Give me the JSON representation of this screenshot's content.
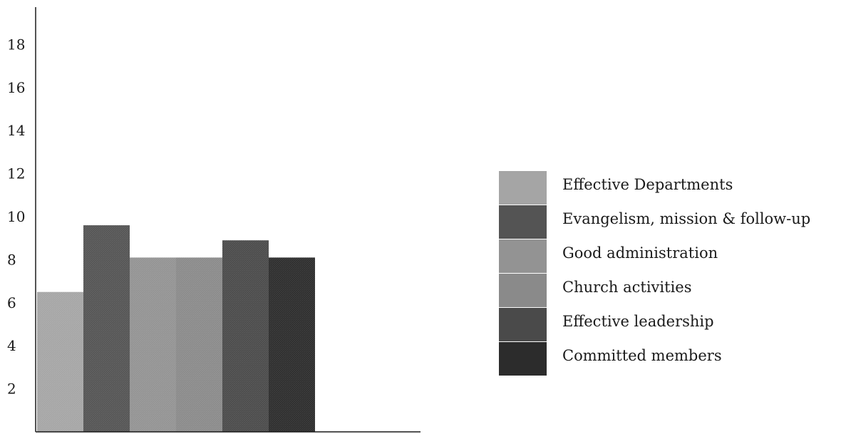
{
  "chart_data": {
    "type": "bar",
    "title": "",
    "xlabel": "",
    "ylabel": "",
    "ylim": [
      0,
      20
    ],
    "yticks": [
      2,
      4,
      6,
      8,
      10,
      12,
      14,
      16,
      18
    ],
    "grid": false,
    "legend_position": "right",
    "series": [
      {
        "name": "Effective Departments",
        "value": 6.5,
        "color": "#a5a5a5"
      },
      {
        "name": "Evangelism, mission & follow-up",
        "value": 9.6,
        "color": "#545454"
      },
      {
        "name": "Good administration",
        "value": 8.1,
        "color": "#939393"
      },
      {
        "name": "Church activities",
        "value": 8.1,
        "color": "#8a8a8a"
      },
      {
        "name": "Effective leadership",
        "value": 8.9,
        "color": "#4a4a4a"
      },
      {
        "name": "Committed members",
        "value": 8.1,
        "color": "#2c2c2c"
      }
    ]
  }
}
